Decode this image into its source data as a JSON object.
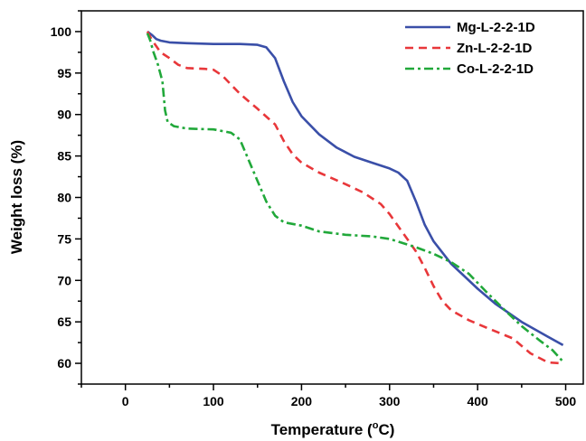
{
  "chart_data": {
    "type": "line",
    "xlabel": "Temperature (",
    "xlabel_sup": "o",
    "xlabel_unit": "C)",
    "ylabel": "Weight loss (%)",
    "xlim": [
      -50,
      520
    ],
    "ylim": [
      57.5,
      102.5
    ],
    "x_ticks": [
      0,
      100,
      200,
      300,
      400,
      500
    ],
    "y_ticks": [
      60,
      65,
      70,
      75,
      80,
      85,
      90,
      95,
      100
    ],
    "legend_position": "top-right",
    "series": [
      {
        "name": "Mg-L-2-2-1D",
        "color": "#3a4fa8",
        "dash": "solid",
        "points": [
          [
            25,
            100
          ],
          [
            30,
            99.6
          ],
          [
            35,
            99.1
          ],
          [
            40,
            98.9
          ],
          [
            50,
            98.7
          ],
          [
            70,
            98.6
          ],
          [
            100,
            98.5
          ],
          [
            130,
            98.5
          ],
          [
            150,
            98.4
          ],
          [
            160,
            98.1
          ],
          [
            170,
            96.8
          ],
          [
            180,
            94
          ],
          [
            190,
            91.5
          ],
          [
            200,
            89.8
          ],
          [
            220,
            87.6
          ],
          [
            240,
            86
          ],
          [
            260,
            84.9
          ],
          [
            280,
            84.2
          ],
          [
            300,
            83.5
          ],
          [
            310,
            83
          ],
          [
            320,
            82
          ],
          [
            330,
            79.5
          ],
          [
            340,
            76.7
          ],
          [
            350,
            74.7
          ],
          [
            370,
            72
          ],
          [
            400,
            69
          ],
          [
            420,
            67.2
          ],
          [
            450,
            65
          ],
          [
            480,
            63.2
          ],
          [
            497,
            62.2
          ]
        ]
      },
      {
        "name": "Zn-L-2-2-1D",
        "color": "#e8373a",
        "dash": "dashed",
        "points": [
          [
            25,
            100
          ],
          [
            30,
            99
          ],
          [
            40,
            97.5
          ],
          [
            50,
            96.8
          ],
          [
            60,
            96
          ],
          [
            70,
            95.6
          ],
          [
            90,
            95.5
          ],
          [
            100,
            95.4
          ],
          [
            110,
            94.7
          ],
          [
            130,
            92.5
          ],
          [
            150,
            90.7
          ],
          [
            170,
            88.8
          ],
          [
            180,
            86.8
          ],
          [
            190,
            85.2
          ],
          [
            200,
            84.2
          ],
          [
            220,
            83
          ],
          [
            250,
            81.6
          ],
          [
            270,
            80.6
          ],
          [
            290,
            79.2
          ],
          [
            300,
            78
          ],
          [
            310,
            76.5
          ],
          [
            320,
            75
          ],
          [
            330,
            73.5
          ],
          [
            340,
            71.5
          ],
          [
            350,
            69.3
          ],
          [
            360,
            67.5
          ],
          [
            370,
            66.4
          ],
          [
            390,
            65.2
          ],
          [
            410,
            64.3
          ],
          [
            440,
            63
          ],
          [
            460,
            61.2
          ],
          [
            480,
            60.1
          ],
          [
            497,
            60
          ]
        ]
      },
      {
        "name": "Co-L-2-2-1D",
        "color": "#21a83a",
        "dash": "dashdot",
        "points": [
          [
            25,
            99.8
          ],
          [
            28,
            99
          ],
          [
            32,
            97.5
          ],
          [
            37,
            96
          ],
          [
            42,
            94
          ],
          [
            45,
            90.5
          ],
          [
            48,
            89.1
          ],
          [
            55,
            88.6
          ],
          [
            70,
            88.3
          ],
          [
            100,
            88.2
          ],
          [
            120,
            87.8
          ],
          [
            130,
            87
          ],
          [
            140,
            84.5
          ],
          [
            150,
            82
          ],
          [
            160,
            79.5
          ],
          [
            170,
            77.8
          ],
          [
            180,
            77
          ],
          [
            200,
            76.6
          ],
          [
            220,
            75.9
          ],
          [
            250,
            75.5
          ],
          [
            280,
            75.3
          ],
          [
            300,
            75
          ],
          [
            330,
            74
          ],
          [
            350,
            73.2
          ],
          [
            370,
            72.2
          ],
          [
            390,
            70.8
          ],
          [
            410,
            68.6
          ],
          [
            430,
            66.5
          ],
          [
            450,
            64.5
          ],
          [
            470,
            62.8
          ],
          [
            485,
            61.6
          ],
          [
            497,
            60.2
          ]
        ]
      }
    ]
  }
}
